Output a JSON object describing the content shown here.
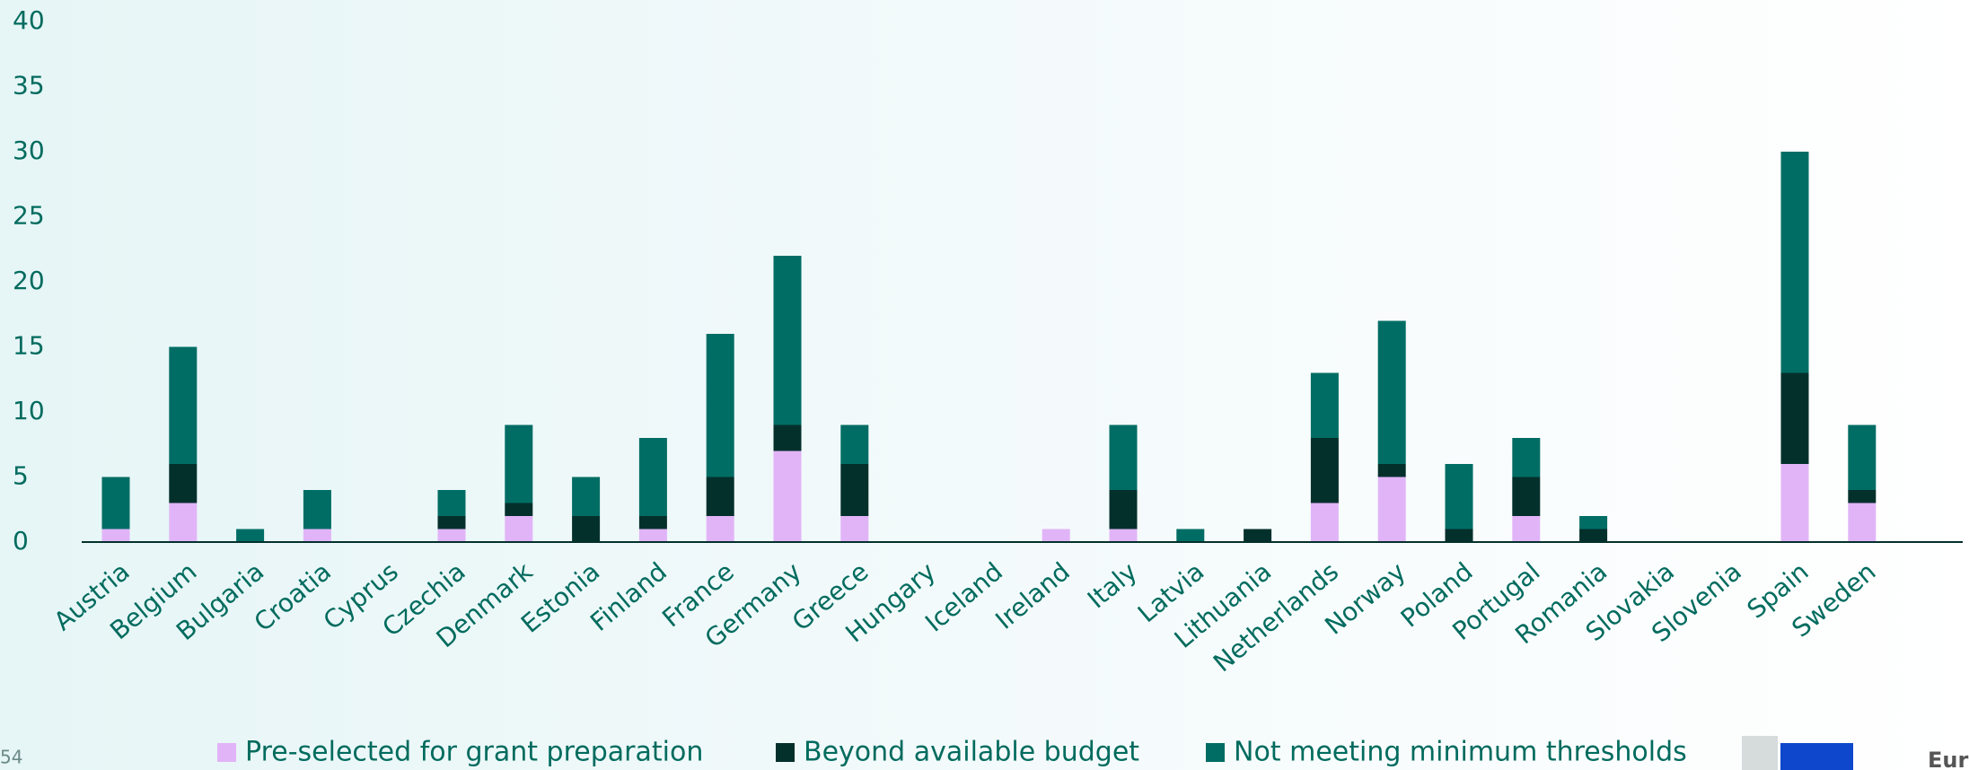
{
  "chart_data": {
    "type": "bar",
    "stacked": true,
    "categories": [
      "Austria",
      "Belgium",
      "Bulgaria",
      "Croatia",
      "Cyprus",
      "Czechia",
      "Denmark",
      "Estonia",
      "Finland",
      "France",
      "Germany",
      "Greece",
      "Hungary",
      "Iceland",
      "Ireland",
      "Italy",
      "Latvia",
      "Lithuania",
      "Netherlands",
      "Norway",
      "Poland",
      "Portugal",
      "Romania",
      "Slovakia",
      "Slovenia",
      "Spain",
      "Sweden"
    ],
    "series": [
      {
        "name": "Pre-selected for grant preparation",
        "color": "#e1b4f7",
        "values": [
          1,
          3,
          0,
          1,
          0,
          1,
          2,
          0,
          1,
          2,
          7,
          2,
          0,
          0,
          1,
          1,
          0,
          0,
          3,
          5,
          0,
          2,
          0,
          0,
          0,
          6,
          3
        ]
      },
      {
        "name": "Beyond available budget",
        "color": "#04302c",
        "values": [
          0,
          3,
          0,
          0,
          0,
          1,
          1,
          2,
          1,
          3,
          2,
          4,
          0,
          0,
          0,
          3,
          0,
          1,
          5,
          1,
          1,
          3,
          1,
          0,
          0,
          7,
          1
        ]
      },
      {
        "name": "Not meeting minimum thresholds",
        "color": "#006d64",
        "values": [
          4,
          9,
          1,
          3,
          0,
          2,
          6,
          3,
          6,
          11,
          13,
          3,
          0,
          0,
          0,
          5,
          1,
          0,
          5,
          11,
          5,
          3,
          1,
          0,
          0,
          17,
          5
        ]
      }
    ],
    "ylim": [
      0,
      40
    ],
    "yticks": [
      0,
      5,
      10,
      15,
      20,
      25,
      30,
      35,
      40
    ],
    "grid": false,
    "legend": "bottom"
  },
  "page_number": "54",
  "logo_text": "European Commission"
}
